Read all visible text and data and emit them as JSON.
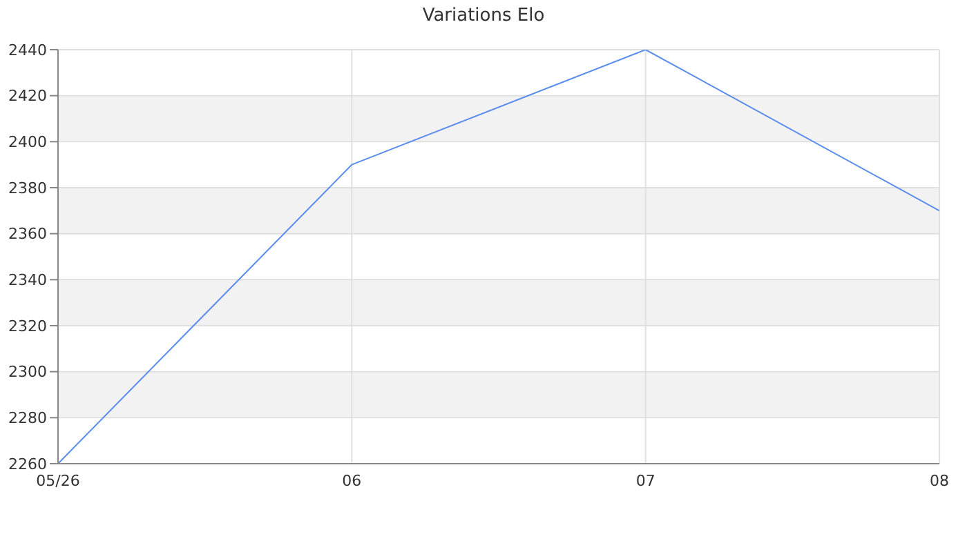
{
  "chart_data": {
    "type": "line",
    "title": "Variations Elo",
    "categories": [
      "05/26",
      "06",
      "07",
      "08"
    ],
    "series": [
      {
        "color": "#5b8def",
        "values": [
          2260,
          2390,
          2440,
          2370
        ]
      }
    ],
    "ylim": [
      2260,
      2440
    ],
    "yticks": [
      2260,
      2280,
      2300,
      2320,
      2340,
      2360,
      2380,
      2400,
      2420,
      2440
    ],
    "grid": true,
    "legend": false,
    "marker": "none",
    "line_style": "solid"
  }
}
